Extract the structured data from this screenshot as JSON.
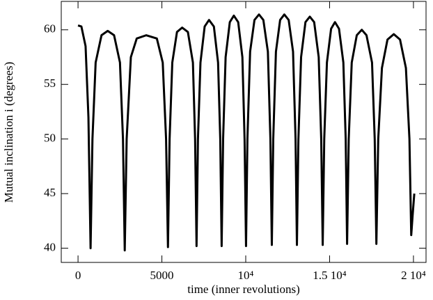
{
  "chart_data": {
    "type": "line",
    "xlabel": "time (inner revolutions)",
    "ylabel": "Mutual inclination i (degrees)",
    "color": "#000000",
    "xlim": [
      -1000,
      20750
    ],
    "ylim": [
      38.7,
      62.6
    ],
    "xticks": [
      0,
      5000,
      {
        "value": 10000,
        "label": "10⁴"
      },
      {
        "value": 15000,
        "label": "1.5 10⁴"
      },
      {
        "value": 20000,
        "label": "2 10⁴"
      }
    ],
    "yticks": [
      40,
      45,
      50,
      55,
      60
    ],
    "x": [
      0,
      200,
      450,
      620,
      748,
      860,
      1050,
      1400,
      1770,
      2150,
      2500,
      2680,
      2785,
      2900,
      3150,
      3500,
      4070,
      4700,
      5050,
      5250,
      5362,
      5460,
      5620,
      5900,
      6210,
      6550,
      6850,
      6980,
      7066,
      7150,
      7300,
      7550,
      7810,
      8100,
      8350,
      8480,
      8563,
      8650,
      8800,
      9050,
      9290,
      9550,
      9800,
      9930,
      10017,
      10100,
      10260,
      10520,
      10790,
      11050,
      11320,
      11470,
      11555,
      11640,
      11800,
      12050,
      12300,
      12560,
      12820,
      12970,
      13051,
      13140,
      13300,
      13560,
      13820,
      14080,
      14350,
      14500,
      14589,
      14680,
      14840,
      15090,
      15320,
      15560,
      15820,
      15960,
      16043,
      16140,
      16320,
      16620,
      16920,
      17200,
      17530,
      17690,
      17789,
      17900,
      18120,
      18450,
      18830,
      19200,
      19550,
      19760,
      19867,
      19950,
      20050
    ],
    "values": [
      60.4,
      60.3,
      58.5,
      52,
      40,
      50,
      57,
      59.5,
      59.9,
      59.5,
      57,
      50,
      39.8,
      50,
      57.5,
      59.2,
      59.5,
      59.2,
      57,
      50,
      40.1,
      50,
      57,
      59.8,
      60.2,
      59.8,
      57,
      50,
      40.2,
      50,
      57,
      60.3,
      60.9,
      60.3,
      57,
      50,
      40.2,
      50,
      57.5,
      60.7,
      61.3,
      60.7,
      57.5,
      50,
      40.2,
      50,
      58,
      60.9,
      61.4,
      60.9,
      58,
      50,
      40.3,
      50,
      58,
      60.9,
      61.4,
      60.9,
      58,
      50,
      40.3,
      50,
      57.5,
      60.7,
      61.2,
      60.7,
      57.5,
      50,
      40.3,
      50,
      57,
      60.1,
      60.7,
      60.1,
      57,
      50,
      40.4,
      50,
      57,
      59.5,
      60.0,
      59.5,
      57,
      50,
      40.4,
      50,
      56.5,
      59.1,
      59.6,
      59.1,
      56.5,
      50,
      41.2,
      43,
      45
    ]
  }
}
